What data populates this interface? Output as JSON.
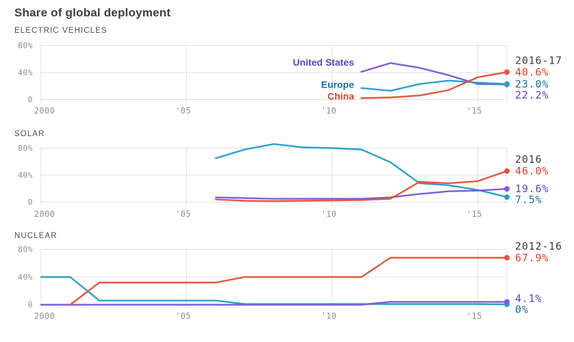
{
  "title": "Share of global deployment",
  "axis": {
    "y_tick_labels": [
      "80%",
      "40%",
      "0"
    ],
    "y_tick_values": [
      80,
      40,
      0
    ],
    "x_tick_labels": [
      "2000",
      "'05",
      "'10",
      "'15"
    ],
    "x_tick_years": [
      2000,
      2005,
      2010,
      2015
    ],
    "x_range": [
      2000,
      2016
    ],
    "ylim": [
      0,
      80
    ],
    "grid": true
  },
  "colors": {
    "background": "#ffffff",
    "grid": "#e1e1e1",
    "axis_text": "#8f8f8f",
    "title_text": "#3d3d44",
    "header_text": "#4a4a52",
    "period_text": "#3d3d3d",
    "united_states_line": "#7b5bdd",
    "united_states_label": "#5b40c2",
    "europe_line": "#2aa0cb",
    "europe_label": "#1b6f9f",
    "china_line": "#e4563a",
    "china_label": "#de3f2a"
  },
  "chart_data": [
    {
      "type": "line",
      "header": "ELECTRIC VEHICLES",
      "period_label": "2016-17",
      "series": [
        {
          "name": "United States",
          "line_color": "#7b5bdd",
          "label_color": "#5b40c2",
          "end_label": "22.2%",
          "show_inline_label": true,
          "x": [
            2011,
            2012,
            2013,
            2014,
            2015,
            2016
          ],
          "values": [
            41,
            54,
            47,
            36,
            23,
            22.2
          ]
        },
        {
          "name": "Europe",
          "line_color": "#2aa0cb",
          "label_color": "#1b6f9f",
          "end_label": "23.0%",
          "show_inline_label": true,
          "x": [
            2011,
            2012,
            2013,
            2014,
            2015,
            2016
          ],
          "values": [
            17,
            13,
            23,
            28,
            25,
            23
          ]
        },
        {
          "name": "China",
          "line_color": "#e4563a",
          "label_color": "#de3f2a",
          "end_label": "40.6%",
          "show_inline_label": true,
          "x": [
            2011,
            2012,
            2013,
            2014,
            2015,
            2016
          ],
          "values": [
            2,
            3,
            6,
            14,
            33,
            40.6
          ]
        }
      ]
    },
    {
      "type": "line",
      "header": "SOLAR",
      "period_label": "2016",
      "series": [
        {
          "name": "Europe",
          "line_color": "#2aa0cb",
          "label_color": "#1b6f9f",
          "end_label": "7.5%",
          "show_inline_label": false,
          "x": [
            2006,
            2007,
            2008,
            2009,
            2010,
            2011,
            2012,
            2013,
            2014,
            2015,
            2016
          ],
          "values": [
            65,
            78,
            86,
            81,
            80,
            78,
            59,
            28,
            25,
            18,
            7.5
          ]
        },
        {
          "name": "United States",
          "line_color": "#7b5bdd",
          "label_color": "#5b40c2",
          "end_label": "19.6%",
          "show_inline_label": false,
          "x": [
            2006,
            2007,
            2008,
            2009,
            2010,
            2011,
            2012,
            2013,
            2014,
            2015,
            2016
          ],
          "values": [
            7,
            6,
            5,
            5,
            5,
            5,
            7,
            12,
            16,
            17,
            19.6
          ]
        },
        {
          "name": "China",
          "line_color": "#e4563a",
          "label_color": "#de3f2a",
          "end_label": "46.0%",
          "show_inline_label": false,
          "x": [
            2006,
            2007,
            2008,
            2009,
            2010,
            2011,
            2012,
            2013,
            2014,
            2015,
            2016
          ],
          "values": [
            4,
            2,
            1.5,
            2,
            2.5,
            3,
            5,
            30,
            28,
            31,
            46
          ]
        }
      ]
    },
    {
      "type": "line",
      "header": "NUCLEAR",
      "period_label": "2012-16",
      "series": [
        {
          "name": "Europe",
          "line_color": "#2aa0cb",
          "label_color": "#1b6f9f",
          "end_label": "0%",
          "show_inline_label": false,
          "x": [
            2000,
            2001,
            2002,
            2003,
            2004,
            2005,
            2006,
            2007,
            2008,
            2009,
            2010,
            2011,
            2012,
            2013,
            2014,
            2015,
            2016
          ],
          "values": [
            40,
            40,
            6,
            6,
            6,
            6,
            6,
            1,
            1,
            1,
            1,
            1,
            1,
            1,
            1,
            1,
            0.5
          ]
        },
        {
          "name": "United States",
          "line_color": "#7b5bdd",
          "label_color": "#5b40c2",
          "end_label": "4.1%",
          "show_inline_label": false,
          "x": [
            2000,
            2001,
            2002,
            2003,
            2004,
            2005,
            2006,
            2007,
            2008,
            2009,
            2010,
            2011,
            2012,
            2013,
            2014,
            2015,
            2016
          ],
          "values": [
            0,
            0,
            0,
            0,
            0,
            0,
            0,
            0,
            0,
            0,
            0,
            0,
            4.1,
            4.1,
            4.1,
            4.1,
            4.1
          ]
        },
        {
          "name": "China",
          "line_color": "#e4563a",
          "label_color": "#de3f2a",
          "end_label": "67.9%",
          "show_inline_label": false,
          "x": [
            2001,
            2002,
            2003,
            2004,
            2005,
            2006,
            2007,
            2008,
            2009,
            2010,
            2011,
            2012,
            2013,
            2014,
            2015,
            2016
          ],
          "values": [
            0,
            32,
            32,
            32,
            32,
            32,
            40,
            40,
            40,
            40,
            40,
            67.9,
            67.9,
            67.9,
            67.9,
            67.9
          ]
        }
      ]
    }
  ]
}
